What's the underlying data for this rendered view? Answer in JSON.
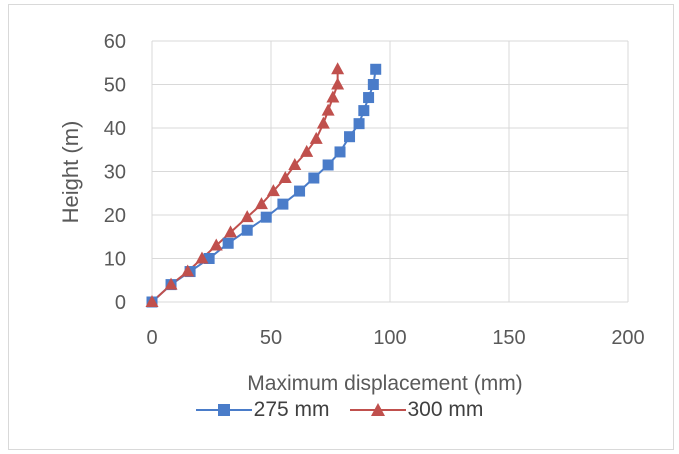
{
  "chart_data": {
    "type": "line",
    "title": "",
    "xlabel": "Maximum displacement (mm)",
    "ylabel": "Height (m)",
    "xlim": [
      0,
      200
    ],
    "ylim": [
      0,
      60
    ],
    "xticks": [
      "0",
      "50",
      "100",
      "150",
      "200"
    ],
    "yticks": [
      "0",
      "10",
      "20",
      "30",
      "40",
      "50",
      "60"
    ],
    "grid": true,
    "legend_position": "bottom",
    "series": [
      {
        "name": "275 mm",
        "marker": "square",
        "color": "#4a7cc9",
        "points": [
          [
            0,
            0
          ],
          [
            8,
            4
          ],
          [
            16,
            7
          ],
          [
            24,
            10
          ],
          [
            32,
            13.5
          ],
          [
            40,
            16.5
          ],
          [
            48,
            19.5
          ],
          [
            55,
            22.5
          ],
          [
            62,
            25.5
          ],
          [
            68,
            28.5
          ],
          [
            74,
            31.5
          ],
          [
            79,
            34.5
          ],
          [
            83,
            38
          ],
          [
            87,
            41
          ],
          [
            89,
            44
          ],
          [
            91,
            47
          ],
          [
            93,
            50
          ],
          [
            94,
            53.5
          ]
        ]
      },
      {
        "name": "300 mm",
        "marker": "triangle",
        "color": "#c0504d",
        "points": [
          [
            0,
            0
          ],
          [
            8,
            4
          ],
          [
            15,
            7
          ],
          [
            21,
            10
          ],
          [
            27,
            13
          ],
          [
            33,
            16
          ],
          [
            40,
            19.5
          ],
          [
            46,
            22.5
          ],
          [
            51,
            25.5
          ],
          [
            56,
            28.5
          ],
          [
            60,
            31.5
          ],
          [
            65,
            34.5
          ],
          [
            69,
            37.5
          ],
          [
            72,
            41
          ],
          [
            74,
            44
          ],
          [
            76,
            47
          ],
          [
            78,
            50
          ],
          [
            78,
            53.5
          ]
        ]
      }
    ]
  }
}
